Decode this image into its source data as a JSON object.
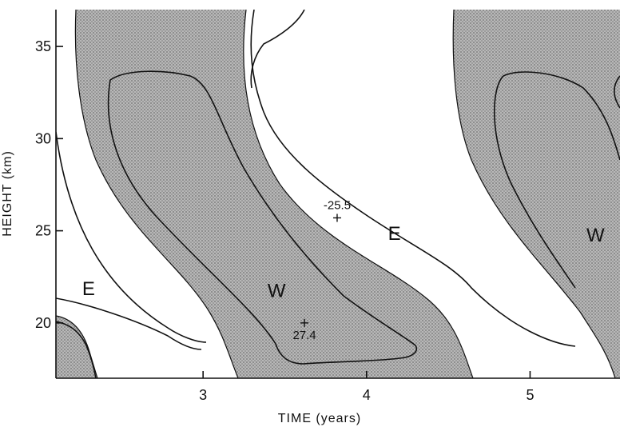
{
  "colors": {
    "westerly_fill": "#a8a8a8",
    "contour_line": "#111111",
    "background": "#ffffff"
  },
  "chart_data": {
    "type": "contour",
    "title": "",
    "xlabel": "TIME (years)",
    "ylabel": "HEIGHT (km)",
    "xlim": [
      2.1,
      5.55
    ],
    "ylim": [
      17,
      37
    ],
    "xticks": [
      3,
      4,
      5
    ],
    "xtick_labels": [
      "3",
      "4",
      "5"
    ],
    "yticks": [
      20,
      25,
      30,
      35
    ],
    "ytick_labels": [
      "20",
      "25",
      "30",
      "35"
    ],
    "grid": false,
    "legend": "none",
    "shading": "westerly (positive) regions shaded grey",
    "region_labels": [
      {
        "text": "E",
        "x": 2.3,
        "y": 21.9
      },
      {
        "text": "W",
        "x": 3.45,
        "y": 21.8
      },
      {
        "text": "E",
        "x": 4.17,
        "y": 24.9
      },
      {
        "text": "W",
        "x": 5.4,
        "y": 24.8
      }
    ],
    "extremes": [
      {
        "kind": "min",
        "value": -25.5,
        "label": "-25.5",
        "x": 3.82,
        "y": 25.7
      },
      {
        "kind": "max",
        "value": 27.4,
        "label": "27.4",
        "x": 3.62,
        "y": 20.0
      }
    ]
  }
}
